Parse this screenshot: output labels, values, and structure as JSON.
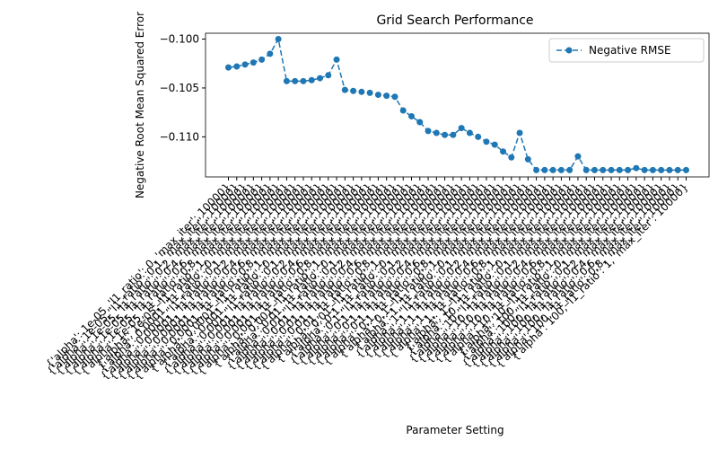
{
  "chart_data": {
    "type": "line",
    "title": "Grid Search Performance",
    "xlabel": "Parameter Setting",
    "ylabel": "Negative Root Mean Squared Error",
    "categories": [
      "{'alpha': 1e-05, 'l1_ratio': 0, 'max_iter': 10000}",
      "{'alpha': 1e-05, 'l1_ratio': 0.1, 'max_iter': 10000}",
      "{'alpha': 1e-05, 'l1_ratio': 0.2, 'max_iter': 10000}",
      "{'alpha': 1e-05, 'l1_ratio': 0.4, 'max_iter': 10000}",
      "{'alpha': 1e-05, 'l1_ratio': 0.6, 'max_iter': 10000}",
      "{'alpha': 1e-05, 'l1_ratio': 0.8, 'max_iter': 10000}",
      "{'alpha': 1e-05, 'l1_ratio': 1, 'max_iter': 10000}",
      "{'alpha': 0.0001, 'l1_ratio': 0, 'max_iter': 10000}",
      "{'alpha': 0.0001, 'l1_ratio': 0.1, 'max_iter': 10000}",
      "{'alpha': 0.0001, 'l1_ratio': 0.2, 'max_iter': 10000}",
      "{'alpha': 0.0001, 'l1_ratio': 0.4, 'max_iter': 10000}",
      "{'alpha': 0.0001, 'l1_ratio': 0.6, 'max_iter': 10000}",
      "{'alpha': 0.0001, 'l1_ratio': 0.8, 'max_iter': 10000}",
      "{'alpha': 0.0001, 'l1_ratio': 1, 'max_iter': 10000}",
      "{'alpha': 0.001, 'l1_ratio': 0, 'max_iter': 10000}",
      "{'alpha': 0.001, 'l1_ratio': 0.1, 'max_iter': 10000}",
      "{'alpha': 0.001, 'l1_ratio': 0.2, 'max_iter': 10000}",
      "{'alpha': 0.001, 'l1_ratio': 0.4, 'max_iter': 10000}",
      "{'alpha': 0.001, 'l1_ratio': 0.6, 'max_iter': 10000}",
      "{'alpha': 0.001, 'l1_ratio': 0.8, 'max_iter': 10000}",
      "{'alpha': 0.001, 'l1_ratio': 1, 'max_iter': 10000}",
      "{'alpha': 0.01, 'l1_ratio': 0, 'max_iter': 10000}",
      "{'alpha': 0.01, 'l1_ratio': 0.1, 'max_iter': 10000}",
      "{'alpha': 0.01, 'l1_ratio': 0.2, 'max_iter': 10000}",
      "{'alpha': 0.01, 'l1_ratio': 0.4, 'max_iter': 10000}",
      "{'alpha': 0.01, 'l1_ratio': 0.6, 'max_iter': 10000}",
      "{'alpha': 0.01, 'l1_ratio': 0.8, 'max_iter': 10000}",
      "{'alpha': 0.01, 'l1_ratio': 1, 'max_iter': 10000}",
      "{'alpha': 0.1, 'l1_ratio': 0, 'max_iter': 10000}",
      "{'alpha': 0.1, 'l1_ratio': 0.1, 'max_iter': 10000}",
      "{'alpha': 0.1, 'l1_ratio': 0.2, 'max_iter': 10000}",
      "{'alpha': 0.1, 'l1_ratio': 0.4, 'max_iter': 10000}",
      "{'alpha': 0.1, 'l1_ratio': 0.6, 'max_iter': 10000}",
      "{'alpha': 0.1, 'l1_ratio': 0.8, 'max_iter': 10000}",
      "{'alpha': 0.1, 'l1_ratio': 1, 'max_iter': 10000}",
      "{'alpha': 1, 'l1_ratio': 0, 'max_iter': 10000}",
      "{'alpha': 1, 'l1_ratio': 0.1, 'max_iter': 10000}",
      "{'alpha': 1, 'l1_ratio': 0.2, 'max_iter': 10000}",
      "{'alpha': 1, 'l1_ratio': 0.4, 'max_iter': 10000}",
      "{'alpha': 1, 'l1_ratio': 0.6, 'max_iter': 10000}",
      "{'alpha': 1, 'l1_ratio': 0.8, 'max_iter': 10000}",
      "{'alpha': 1, 'l1_ratio': 1, 'max_iter': 10000}",
      "{'alpha': 10, 'l1_ratio': 0, 'max_iter': 10000}",
      "{'alpha': 10, 'l1_ratio': 0.1, 'max_iter': 10000}",
      "{'alpha': 10, 'l1_ratio': 0.2, 'max_iter': 10000}",
      "{'alpha': 10, 'l1_ratio': 0.4, 'max_iter': 10000}",
      "{'alpha': 10, 'l1_ratio': 0.6, 'max_iter': 10000}",
      "{'alpha': 10, 'l1_ratio': 0.8, 'max_iter': 10000}",
      "{'alpha': 10, 'l1_ratio': 1, 'max_iter': 10000}",
      "{'alpha': 100, 'l1_ratio': 0, 'max_iter': 10000}",
      "{'alpha': 100, 'l1_ratio': 0.1, 'max_iter': 10000}",
      "{'alpha': 100, 'l1_ratio': 0.2, 'max_iter': 10000}",
      "{'alpha': 100, 'l1_ratio': 0.4, 'max_iter': 10000}",
      "{'alpha': 100, 'l1_ratio': 0.6, 'max_iter': 10000}",
      "{'alpha': 100, 'l1_ratio': 0.8, 'max_iter': 10000}",
      "{'alpha': 100, 'l1_ratio': 1, 'max_iter': 10000}"
    ],
    "series": [
      {
        "name": "Negative RMSE",
        "color": "#1f77b4",
        "linestyle": "dashed",
        "marker": "o",
        "values": [
          -0.1029,
          -0.1028,
          -0.1026,
          -0.1024,
          -0.1021,
          -0.1015,
          -0.1,
          -0.1043,
          -0.1043,
          -0.1043,
          -0.1042,
          -0.104,
          -0.1037,
          -0.1021,
          -0.1052,
          -0.1053,
          -0.1054,
          -0.1055,
          -0.1057,
          -0.1058,
          -0.1059,
          -0.1073,
          -0.1079,
          -0.1085,
          -0.1094,
          -0.1096,
          -0.1098,
          -0.1098,
          -0.1091,
          -0.1096,
          -0.11,
          -0.1105,
          -0.1108,
          -0.1115,
          -0.1121,
          -0.1096,
          -0.1123,
          -0.1134,
          -0.1134,
          -0.1134,
          -0.1134,
          -0.1134,
          -0.112,
          -0.1134,
          -0.1134,
          -0.1134,
          -0.1134,
          -0.1134,
          -0.1134,
          -0.1132,
          -0.1134,
          -0.1134,
          -0.1134,
          -0.1134,
          -0.1134,
          -0.1134
        ]
      }
    ],
    "ylim": [
      -0.1141,
      -0.0994
    ],
    "yticks": [
      {
        "value": -0.11,
        "label": "−0.110"
      },
      {
        "value": -0.105,
        "label": "−0.105"
      },
      {
        "value": -0.1,
        "label": "−0.100"
      }
    ],
    "legend": "upper right"
  }
}
